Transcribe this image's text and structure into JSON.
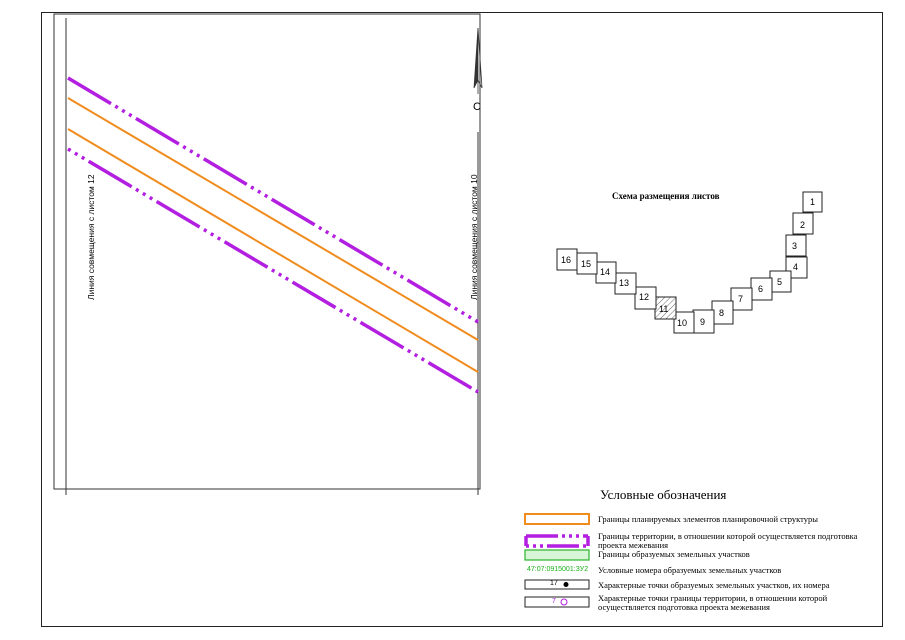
{
  "map": {
    "north_label": "С",
    "left_match_line": "Линия совмещения с листом 12",
    "right_match_line": "Линия совмещения с листом 10"
  },
  "schema": {
    "title": "Схема размещения листов",
    "sheets": [
      "1",
      "2",
      "3",
      "4",
      "5",
      "6",
      "7",
      "8",
      "9",
      "10",
      "11",
      "12",
      "13",
      "14",
      "15",
      "16"
    ],
    "current_sheet": "11"
  },
  "legend": {
    "title": "Условные обозначения",
    "items": [
      {
        "symbol": "orange-rectangle",
        "text": "Границы планируемых элементов планировочной структуры"
      },
      {
        "symbol": "purple-dash-dot-line",
        "text": "Границы территории, в отношении которой осуществляется подготовка проекта межевания"
      },
      {
        "symbol": "green-rectangle",
        "text": "Границы образуемых земельных участков"
      },
      {
        "symbol": "green-code",
        "symbol_text": "47:07:0915001:ЗУ2",
        "text": "Условные номера образуемых земельных участков"
      },
      {
        "symbol": "point-filled",
        "symbol_text": "17",
        "text": "Характерные точки образуемых земельных участков, их номера"
      },
      {
        "symbol": "point-open",
        "symbol_text": "7",
        "text": "Характерные точки границы территории, в отношении которой осуществляется подготовка проекта межевания"
      }
    ]
  },
  "colors": {
    "orange": "#f08c1e",
    "purple": "#b31fe0",
    "green": "#2ab52a",
    "green_fill": "#d8f5d8"
  }
}
